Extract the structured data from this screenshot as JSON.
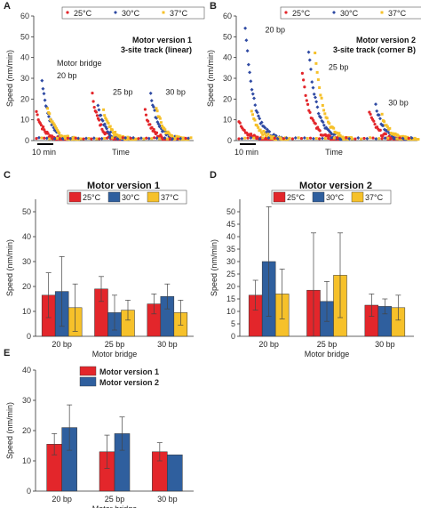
{
  "chart_data": [
    {
      "id": "A",
      "type": "scatter",
      "title": "Motor version 1",
      "subtitle": "3-site track (linear)",
      "panel_label": "A",
      "xlabel": "Time",
      "ylabel": "Speed (nm/min)",
      "ylim": [
        0,
        60
      ],
      "yticks": [
        0,
        10,
        20,
        30,
        40,
        50,
        60
      ],
      "legend": [
        {
          "name": "25°C",
          "color": "#e3262b",
          "marker": "circle"
        },
        {
          "name": "30°C",
          "color": "#2f4aa3",
          "marker": "diamond"
        },
        {
          "name": "37°C",
          "color": "#f6c12a",
          "marker": "square"
        }
      ],
      "scalebar_label": "10 min",
      "annotations": [
        {
          "text": "Motor bridge",
          "x": 0.1,
          "y": 36
        },
        {
          "text": "20 bp",
          "x": 0.1,
          "y": 30
        },
        {
          "text": "25 bp",
          "x": 0.45,
          "y": 22
        },
        {
          "text": "30 bp",
          "x": 0.78,
          "y": 22
        }
      ],
      "bursts": [
        {
          "x_start": 0.0,
          "peaks": {
            "25°C": 14,
            "30°C": 29,
            "37°C": 16
          }
        },
        {
          "x_start": 0.35,
          "peaks": {
            "25°C": 22,
            "30°C": 17,
            "37°C": 14
          }
        },
        {
          "x_start": 0.68,
          "peaks": {
            "25°C": 14,
            "30°C": 23,
            "37°C": 16
          }
        }
      ]
    },
    {
      "id": "B",
      "type": "scatter",
      "title": "Motor version 2",
      "subtitle": "3-site track (corner B)",
      "panel_label": "B",
      "xlabel": "Time",
      "ylabel": "Speed (nm/min)",
      "ylim": [
        0,
        60
      ],
      "yticks": [
        0,
        10,
        20,
        30,
        40,
        50,
        60
      ],
      "legend": [
        {
          "name": "25°C",
          "color": "#e3262b",
          "marker": "circle"
        },
        {
          "name": "30°C",
          "color": "#2f4aa3",
          "marker": "diamond"
        },
        {
          "name": "37°C",
          "color": "#f6c12a",
          "marker": "square"
        }
      ],
      "scalebar_label": "10 min",
      "annotations": [
        {
          "text": "20 bp",
          "x": 0.12,
          "y": 52
        },
        {
          "text": "25 bp",
          "x": 0.47,
          "y": 34
        },
        {
          "text": "30 bp",
          "x": 0.8,
          "y": 17
        }
      ],
      "bursts": [
        {
          "x_start": 0.0,
          "peaks": {
            "25°C": 10,
            "30°C": 55,
            "37°C": 14
          }
        },
        {
          "x_start": 0.35,
          "peaks": {
            "25°C": 33,
            "30°C": 43,
            "37°C": 43
          }
        },
        {
          "x_start": 0.72,
          "peaks": {
            "25°C": 14,
            "30°C": 17,
            "37°C": 12
          }
        }
      ]
    },
    {
      "id": "C",
      "type": "bar",
      "title": "Motor version 1",
      "panel_label": "C",
      "xlabel": "Motor bridge",
      "ylabel": "Speed (nm/min)",
      "ylim": [
        0,
        55
      ],
      "yticks": [
        0,
        10,
        20,
        30,
        40,
        50
      ],
      "categories": [
        "20 bp",
        "25 bp",
        "30 bp"
      ],
      "series": [
        {
          "name": "25°C",
          "color": "#e3262b",
          "values": [
            16.5,
            19,
            13
          ],
          "errors": [
            9,
            5,
            4
          ]
        },
        {
          "name": "30°C",
          "color": "#2f5f9e",
          "values": [
            18,
            9.5,
            16
          ],
          "errors": [
            14,
            7,
            5
          ]
        },
        {
          "name": "37°C",
          "color": "#f6c12a",
          "values": [
            11.5,
            10.5,
            9.5
          ],
          "errors": [
            9.5,
            4,
            5
          ]
        }
      ]
    },
    {
      "id": "D",
      "type": "bar",
      "title": "Motor version 2",
      "panel_label": "D",
      "xlabel": "Motor bridge",
      "ylabel": "Speed (nm/min)",
      "ylim": [
        0,
        55
      ],
      "yticks": [
        0,
        5,
        10,
        15,
        20,
        25,
        30,
        35,
        40,
        45,
        50
      ],
      "categories": [
        "20 bp",
        "25 bp",
        "30 bp"
      ],
      "series": [
        {
          "name": "25°C",
          "color": "#e3262b",
          "values": [
            16.5,
            18.5,
            12.5
          ],
          "errors": [
            6,
            23,
            4.5
          ]
        },
        {
          "name": "30°C",
          "color": "#2f5f9e",
          "values": [
            30,
            14,
            12
          ],
          "errors": [
            22,
            8,
            3
          ]
        },
        {
          "name": "37°C",
          "color": "#f6c12a",
          "values": [
            17,
            24.5,
            11.5
          ],
          "errors": [
            10,
            17,
            5
          ]
        }
      ]
    },
    {
      "id": "E",
      "type": "bar",
      "panel_label": "E",
      "xlabel": "Motor bridge",
      "ylabel": "Speed (nm/min)",
      "ylim": [
        0,
        40
      ],
      "yticks": [
        0,
        10,
        20,
        30,
        40
      ],
      "categories": [
        "20 bp",
        "25 bp",
        "30 bp"
      ],
      "series": [
        {
          "name": "Motor version 1",
          "color": "#e3262b",
          "values": [
            15.5,
            13,
            13
          ],
          "errors": [
            3.5,
            5.5,
            3
          ]
        },
        {
          "name": "Motor version 2",
          "color": "#2f5f9e",
          "values": [
            21,
            19,
            12
          ],
          "errors": [
            7.5,
            5.5,
            0
          ]
        }
      ]
    }
  ]
}
